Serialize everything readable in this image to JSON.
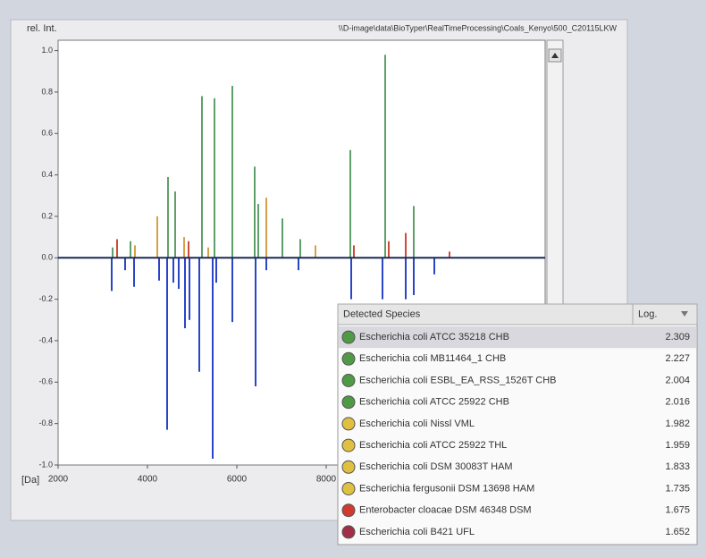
{
  "window": {
    "path": "\\\\D-image\\data\\BioTyper\\RealTimeProcessing\\Coals_Kenyo\\500_C20115LKW"
  },
  "chart_data": {
    "type": "spectrum",
    "y_label": "rel. Int.",
    "x_label": "[Da]",
    "xlim": [
      2000,
      12900
    ],
    "ylim": [
      -1,
      1.05
    ],
    "xticks": [
      2000,
      4000,
      6000,
      8000
    ],
    "yticks": [
      {
        "value": 1,
        "label": "1.0"
      },
      0.8,
      0.6,
      0.4,
      0.2,
      {
        "value": 0,
        "label": "0.0"
      },
      -0.2,
      -0.4,
      -0.6,
      -0.8,
      {
        "value": -1,
        "label": "-1.0"
      }
    ],
    "series": [
      {
        "color": "#5fa06a",
        "x": [
          3220,
          3620,
          4460,
          4620,
          5220,
          5500,
          5900,
          6400,
          6480,
          7020,
          7420,
          8540,
          9320,
          9960
        ],
        "values": [
          0.05,
          0.08,
          0.39,
          0.32,
          0.78,
          0.77,
          0.83,
          0.44,
          0.26,
          0.19,
          0.09,
          0.52,
          0.98,
          0.25
        ]
      },
      {
        "color": "#d04a3a",
        "x": [
          3320,
          4920,
          8620,
          9400,
          9780,
          10760
        ],
        "values": [
          0.09,
          0.08,
          0.06,
          0.08,
          0.12,
          0.03
        ]
      },
      {
        "color": "#d7a048",
        "x": [
          3720,
          4220,
          4820,
          5360,
          6660,
          7760
        ],
        "values": [
          0.06,
          0.2,
          0.1,
          0.05,
          0.29,
          0.06
        ]
      },
      {
        "color": "#2b45c8",
        "x": [
          3200,
          3500,
          3700,
          4260,
          4440,
          4580,
          4700,
          4840,
          4940,
          5160,
          5460,
          5540,
          5900,
          6420,
          6660,
          7380,
          8560,
          9260,
          9780,
          9960,
          10420
        ],
        "values": [
          -0.16,
          -0.06,
          -0.14,
          -0.11,
          -0.83,
          -0.12,
          -0.15,
          -0.34,
          -0.3,
          -0.55,
          -0.97,
          -0.12,
          -0.31,
          -0.62,
          -0.06,
          -0.06,
          -0.2,
          -0.2,
          -0.2,
          -0.18,
          -0.08
        ]
      }
    ]
  },
  "table": {
    "header": [
      "Detected Species",
      "Log."
    ],
    "rows": [
      {
        "species": "Escherichia coli ATCC 35218 CHB",
        "score": 2.309,
        "icon": "#4f9a45"
      },
      {
        "species": "Escherichia coli MB11464_1 CHB",
        "score": 2.227,
        "icon": "#4f9a45"
      },
      {
        "species": "Escherichia coli ESBL_EA_RSS_1526T CHB",
        "score": 2.004,
        "icon": "#4f9a45"
      },
      {
        "species": "Escherichia coli ATCC 25922 CHB",
        "score": 2.016,
        "icon": "#4f9a45"
      },
      {
        "species": "Escherichia coli Nissl VML",
        "score": 1.982,
        "icon": "#e0c040"
      },
      {
        "species": "Escherichia coli ATCC 25922 THL",
        "score": 1.959,
        "icon": "#e0c040"
      },
      {
        "species": "Escherichia coli DSM 30083T HAM",
        "score": 1.833,
        "icon": "#e0c040"
      },
      {
        "species": "Escherichia fergusonii DSM 13698 HAM",
        "score": 1.735,
        "icon": "#e0c040"
      },
      {
        "species": "Enterobacter cloacae DSM 46348 DSM",
        "score": 1.675,
        "icon": "#d03a30"
      },
      {
        "species": "Escherichia coli B421 UFL",
        "score": 1.652,
        "icon": "#a03048"
      }
    ]
  }
}
